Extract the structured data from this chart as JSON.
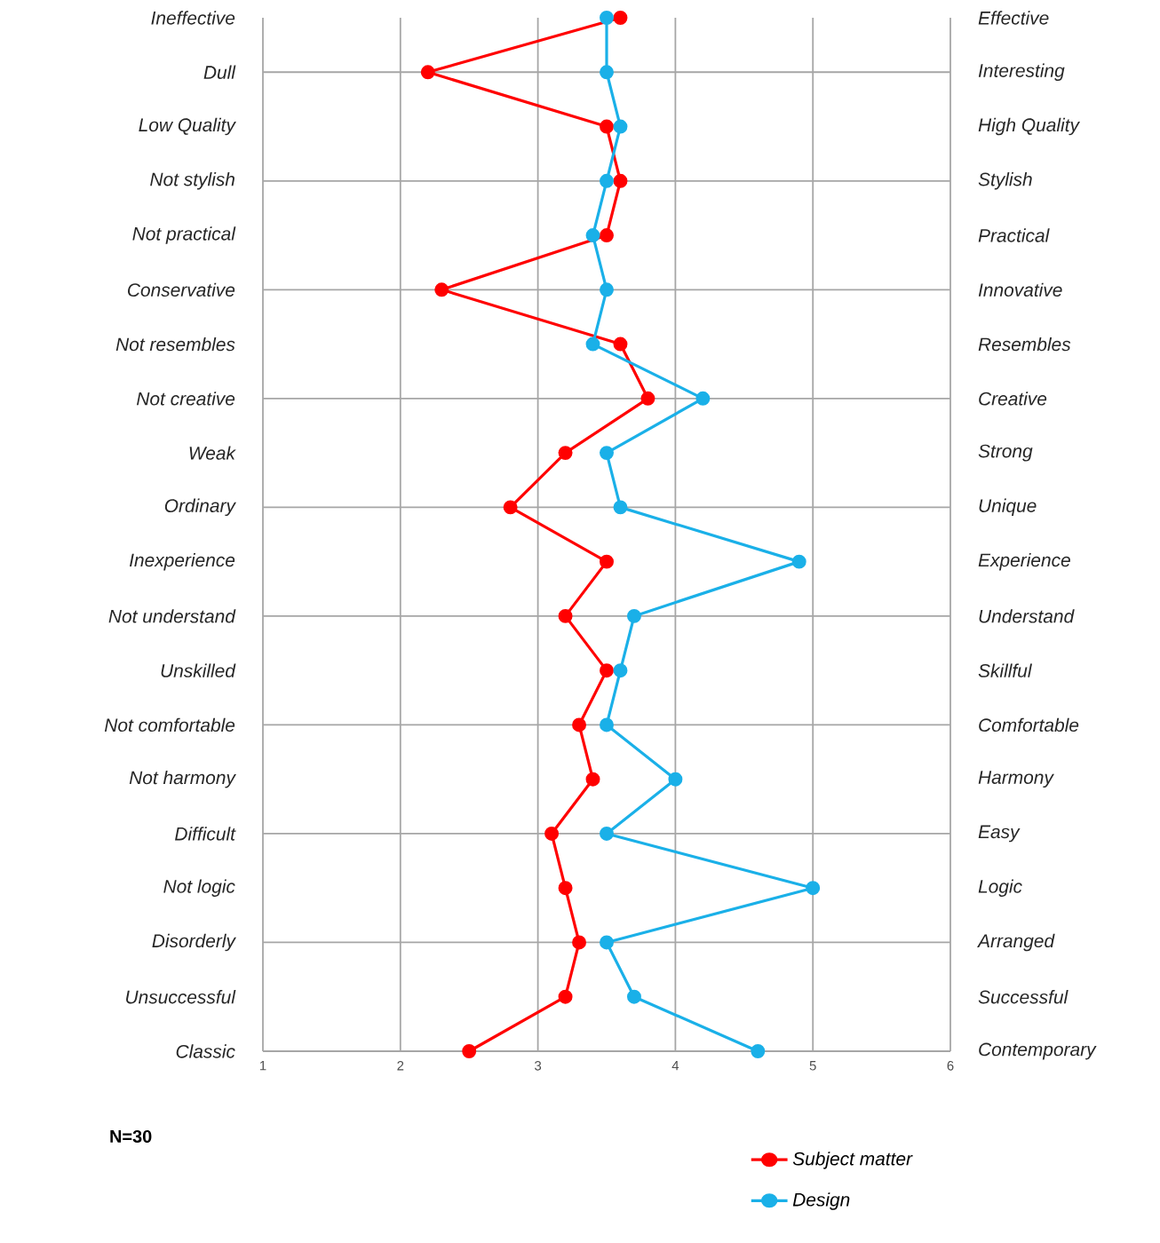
{
  "chart_data": {
    "type": "line",
    "orientation": "horizontal",
    "categories": [
      "Ineffective",
      "Dull",
      "Low Quality",
      "Not stylish",
      "Not practical",
      "Conservative",
      "Not resembles",
      "Not creative",
      "Weak",
      "Ordinary",
      "Inexperience",
      "Not understand",
      "Unskilled",
      "Not comfortable",
      "Not harmony",
      "Difficult",
      "Not logic",
      "Disorderly",
      "Unsuccessful",
      "Classic"
    ],
    "y2_categories": [
      "Effective",
      "Interesting",
      "High Quality",
      "Stylish",
      "Practical",
      "Innovative",
      "Resembles",
      "Creative",
      "Strong",
      "Unique",
      "Experience",
      "Understand",
      "Skillful",
      "Comfortable",
      "Harmony",
      "Easy",
      "Logic",
      "Arranged",
      "Successful",
      "Contemporary"
    ],
    "series": [
      {
        "name": "Subject matter",
        "color": "#ff0000",
        "values": [
          3.6,
          2.2,
          3.5,
          3.6,
          3.5,
          2.3,
          3.6,
          3.8,
          3.2,
          2.8,
          3.5,
          3.2,
          3.5,
          3.3,
          3.4,
          3.1,
          3.2,
          3.3,
          3.2,
          2.5
        ]
      },
      {
        "name": "Design",
        "color": "#1ab0e8",
        "values": [
          3.5,
          3.5,
          3.6,
          3.5,
          3.4,
          3.5,
          3.4,
          4.2,
          3.5,
          3.6,
          4.9,
          3.7,
          3.6,
          3.5,
          4.0,
          3.5,
          5.0,
          3.5,
          3.7,
          4.6
        ]
      }
    ],
    "xlim": [
      1,
      6
    ],
    "xticks": [
      1,
      2,
      3,
      4,
      5,
      6
    ],
    "grid": true,
    "marker": "circle",
    "line_style": "solid",
    "legend": "bottom right",
    "annotations": [
      "N=30"
    ]
  }
}
